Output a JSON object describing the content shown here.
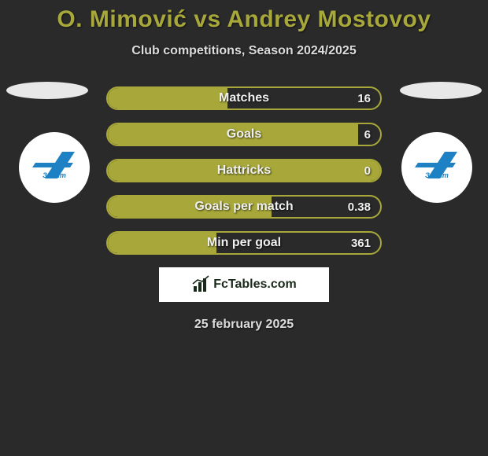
{
  "title": "O. Mimović vs Andrey Mostovoy",
  "subtitle": "Club competitions, Season 2024/2025",
  "date": "25 february 2025",
  "brand": "FcTables.com",
  "colors": {
    "bar_fill": "#a8a83a",
    "bar_border": "#a8a83a",
    "bar_bg": "#2a2a2a",
    "title_color": "#a8a83a",
    "badge_blue": "#1d81c4"
  },
  "stats": [
    {
      "label": "Matches",
      "value": "16",
      "fill_pct": 44
    },
    {
      "label": "Goals",
      "value": "6",
      "fill_pct": 92
    },
    {
      "label": "Hattricks",
      "value": "0",
      "fill_pct": 100
    },
    {
      "label": "Goals per match",
      "value": "0.38",
      "fill_pct": 60
    },
    {
      "label": "Min per goal",
      "value": "361",
      "fill_pct": 40
    }
  ]
}
